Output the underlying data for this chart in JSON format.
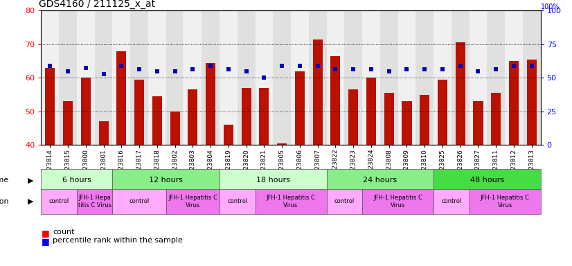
{
  "title": "GDS4160 / 211125_x_at",
  "samples": [
    "GSM523814",
    "GSM523815",
    "GSM523800",
    "GSM523801",
    "GSM523816",
    "GSM523817",
    "GSM523818",
    "GSM523802",
    "GSM523803",
    "GSM523804",
    "GSM523819",
    "GSM523820",
    "GSM523821",
    "GSM523805",
    "GSM523806",
    "GSM523807",
    "GSM523822",
    "GSM523823",
    "GSM523824",
    "GSM523808",
    "GSM523809",
    "GSM523810",
    "GSM523825",
    "GSM523826",
    "GSM523827",
    "GSM523811",
    "GSM523812",
    "GSM523813"
  ],
  "counts": [
    63.0,
    53.0,
    60.0,
    47.0,
    68.0,
    59.5,
    54.5,
    50.0,
    56.5,
    64.5,
    46.0,
    57.0,
    57.0,
    40.5,
    62.0,
    71.5,
    66.5,
    56.5,
    60.0,
    55.5,
    53.0,
    55.0,
    59.5,
    70.5,
    53.0,
    55.5,
    65.0,
    65.5
  ],
  "percentiles": [
    63.5,
    62.0,
    63.0,
    61.0,
    63.5,
    62.5,
    62.0,
    62.0,
    62.5,
    63.5,
    62.5,
    62.0,
    60.0,
    63.5,
    63.5,
    63.5,
    62.5,
    62.5,
    62.5,
    62.0,
    62.5,
    62.5,
    62.5,
    63.5,
    62.0,
    62.5,
    63.5,
    63.5
  ],
  "bar_color": "#bb1100",
  "dot_color": "#0000bb",
  "ylim_left": [
    40,
    80
  ],
  "ylim_right": [
    0,
    100
  ],
  "yticks_left": [
    40,
    50,
    60,
    70,
    80
  ],
  "yticks_right": [
    0,
    25,
    50,
    75,
    100
  ],
  "time_groups": [
    {
      "label": "6 hours",
      "start": 0,
      "end": 4,
      "color": "#ccffcc"
    },
    {
      "label": "12 hours",
      "start": 4,
      "end": 10,
      "color": "#88ee88"
    },
    {
      "label": "18 hours",
      "start": 10,
      "end": 16,
      "color": "#ccffcc"
    },
    {
      "label": "24 hours",
      "start": 16,
      "end": 22,
      "color": "#88ee88"
    },
    {
      "label": "48 hours",
      "start": 22,
      "end": 28,
      "color": "#44dd44"
    }
  ],
  "infection_groups": [
    {
      "label": "control",
      "start": 0,
      "end": 2,
      "color": "#ffaaff"
    },
    {
      "label": "JFH-1 Hepa\ntitis C Virus",
      "start": 2,
      "end": 4,
      "color": "#ee77ee"
    },
    {
      "label": "control",
      "start": 4,
      "end": 7,
      "color": "#ffaaff"
    },
    {
      "label": "JFH-1 Hepatitis C\nVirus",
      "start": 7,
      "end": 10,
      "color": "#ee77ee"
    },
    {
      "label": "control",
      "start": 10,
      "end": 12,
      "color": "#ffaaff"
    },
    {
      "label": "JFH-1 Hepatitis C\nVirus",
      "start": 12,
      "end": 16,
      "color": "#ee77ee"
    },
    {
      "label": "control",
      "start": 16,
      "end": 18,
      "color": "#ffaaff"
    },
    {
      "label": "JFH-1 Hepatitis C\nVirus",
      "start": 18,
      "end": 22,
      "color": "#ee77ee"
    },
    {
      "label": "control",
      "start": 22,
      "end": 24,
      "color": "#ffaaff"
    },
    {
      "label": "JFH-1 Hepatitis C\nVirus",
      "start": 24,
      "end": 28,
      "color": "#ee77ee"
    }
  ],
  "right_ylabel": "%",
  "title_fontsize": 10,
  "tick_fontsize": 6.5,
  "bar_width": 0.55,
  "col_colors": [
    "#f0f0f0",
    "#e0e0e0"
  ]
}
